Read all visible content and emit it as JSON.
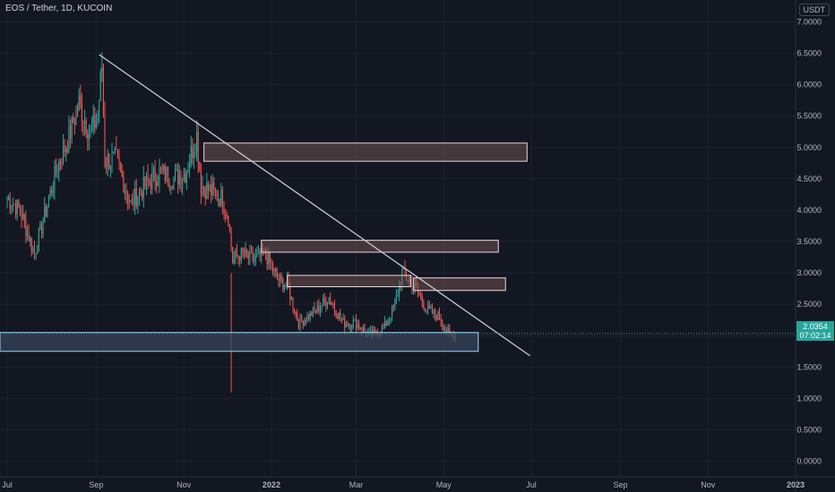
{
  "header": {
    "symbol": "EOS / Tether, 1D, KUCOIN",
    "currency": "USDT"
  },
  "last_price": {
    "value": "2.0354",
    "countdown": "07:02:14"
  },
  "colors": {
    "background": "#131722",
    "grid": "#1e222d",
    "up": "#26a69a",
    "down": "#ef5350",
    "axis_text": "#b2b5be",
    "trendline": "#d1d4dc",
    "resistance_fill": "#6d5050",
    "resistance_border": "#f0d7d7",
    "support_fill": "#37465a",
    "support_border": "#9fd0ff"
  },
  "chart_data": {
    "type": "candlestick",
    "title": "EOS / Tether, 1D, KUCOIN",
    "y_ticks": [
      "7.0000",
      "6.5000",
      "6.0000",
      "5.5000",
      "5.0000",
      "4.5000",
      "4.0000",
      "3.5000",
      "3.0000",
      "2.5000",
      "2.0000",
      "1.5000",
      "1.0000",
      "0.5000",
      "0.0000"
    ],
    "x_ticks": [
      "Jul",
      "Sep",
      "Nov",
      "2022",
      "Mar",
      "May",
      "Jul",
      "Sep",
      "Nov",
      "2023"
    ],
    "ylim": [
      -0.25,
      7.35
    ],
    "xlim": [
      "2021-06-26",
      "2023-01-01"
    ],
    "grid": true,
    "series": [
      {
        "name": "EOS/USDT",
        "points": [
          [
            "2021-07-01",
            4.2
          ],
          [
            "2021-07-10",
            4.0
          ],
          [
            "2021-07-20",
            3.3
          ],
          [
            "2021-07-28",
            4.0
          ],
          [
            "2021-08-05",
            4.7
          ],
          [
            "2021-08-12",
            5.1
          ],
          [
            "2021-08-20",
            5.7
          ],
          [
            "2021-08-28",
            5.2
          ],
          [
            "2021-09-02",
            5.5
          ],
          [
            "2021-09-05",
            6.3
          ],
          [
            "2021-09-07",
            4.8
          ],
          [
            "2021-09-15",
            4.8
          ],
          [
            "2021-09-25",
            4.1
          ],
          [
            "2021-10-05",
            4.4
          ],
          [
            "2021-10-15",
            4.6
          ],
          [
            "2021-10-25",
            4.5
          ],
          [
            "2021-11-02",
            4.6
          ],
          [
            "2021-11-10",
            5.2
          ],
          [
            "2021-11-13",
            4.4
          ],
          [
            "2021-11-20",
            4.3
          ],
          [
            "2021-11-27",
            4.2
          ],
          [
            "2021-12-02",
            3.9
          ],
          [
            "2021-12-05",
            3.2
          ],
          [
            "2021-12-10",
            3.3
          ],
          [
            "2021-12-20",
            3.2
          ],
          [
            "2021-12-28",
            3.3
          ],
          [
            "2022-01-05",
            2.9
          ],
          [
            "2022-01-12",
            2.8
          ],
          [
            "2022-01-20",
            2.2
          ],
          [
            "2022-02-01",
            2.4
          ],
          [
            "2022-02-10",
            2.6
          ],
          [
            "2022-02-20",
            2.2
          ],
          [
            "2022-03-01",
            2.2
          ],
          [
            "2022-03-10",
            2.0
          ],
          [
            "2022-03-20",
            2.1
          ],
          [
            "2022-03-28",
            2.5
          ],
          [
            "2022-04-02",
            3.0
          ],
          [
            "2022-04-10",
            2.8
          ],
          [
            "2022-04-20",
            2.4
          ],
          [
            "2022-04-28",
            2.3
          ],
          [
            "2022-05-05",
            2.0
          ],
          [
            "2022-05-09",
            2.0354
          ]
        ]
      }
    ],
    "annotations": {
      "trendline": {
        "from": [
          "2021-09-03",
          6.48
        ],
        "to": [
          "2022-06-30",
          1.68
        ]
      },
      "resistance_zones": [
        {
          "from": "2021-11-15",
          "to": "2022-06-28",
          "low": 4.78,
          "high": 5.07
        },
        {
          "from": "2021-12-25",
          "to": "2022-06-08",
          "low": 3.33,
          "high": 3.52
        },
        {
          "from": "2022-01-12",
          "to": "2022-04-08",
          "low": 2.78,
          "high": 2.96
        },
        {
          "from": "2022-04-10",
          "to": "2022-06-13",
          "low": 2.72,
          "high": 2.92
        }
      ],
      "support_zones": [
        {
          "from": "2021-06-26",
          "to": "2022-05-25",
          "low": 1.75,
          "high": 2.05
        }
      ]
    }
  }
}
